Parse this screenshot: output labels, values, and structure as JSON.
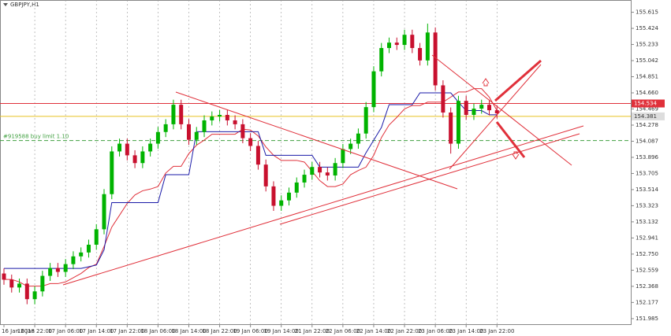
{
  "chart_data": {
    "type": "candlestick",
    "title": "GBPJPY,H1",
    "categories": [
      "16 Jan 2018",
      null,
      null,
      null,
      "16 Jan 22:00",
      null,
      null,
      null,
      "17 Jan 06:00",
      null,
      null,
      null,
      "17 Jan 14:00",
      null,
      null,
      null,
      "17 Jan 22:00",
      null,
      null,
      null,
      "18 Jan 06:00",
      null,
      null,
      null,
      "18 Jan 14:00",
      null,
      null,
      null,
      "18 Jan 22:00",
      null,
      null,
      null,
      "19 Jan 06:00",
      null,
      null,
      null,
      "19 Jan 14:00",
      null,
      null,
      null,
      "21 Jan 22:00",
      null,
      null,
      null,
      "22 Jan 06:00",
      null,
      null,
      null,
      "22 Jan 14:00",
      null,
      null,
      null,
      "22 Jan 22:00",
      null,
      null,
      null,
      "23 Jan 06:00",
      null,
      null,
      null,
      "23 Jan 14:00",
      null,
      null,
      null,
      "23 Jan 22:00"
    ],
    "open": [
      152.52,
      152.447,
      152.354,
      152.4,
      152.216,
      152.308,
      152.492,
      152.585,
      152.539,
      152.631,
      152.723,
      152.769,
      152.861,
      153.044,
      153.46,
      153.966,
      154.058,
      153.92,
      153.828,
      153.966,
      154.058,
      154.196,
      154.288,
      154.519,
      154.288,
      154.104,
      154.196,
      154.334,
      154.38,
      154.399,
      154.334,
      154.288,
      154.123,
      154.031,
      153.81,
      153.552,
      153.322,
      153.386,
      153.478,
      153.598,
      153.69,
      153.782,
      153.717,
      153.681,
      153.828,
      153.994,
      154.058,
      154.178,
      154.491,
      154.915,
      155.191,
      155.255,
      155.228,
      155.348,
      155.191,
      155.044,
      155.375,
      154.749,
      154.427,
      154.058,
      154.565,
      154.399,
      154.473,
      154.519,
      154.454
    ],
    "high": [
      152.58,
      152.507,
      152.46,
      152.46,
      152.368,
      152.552,
      152.645,
      152.645,
      152.691,
      152.783,
      152.829,
      152.921,
      153.104,
      153.52,
      154.026,
      154.118,
      154.118,
      153.98,
      154.026,
      154.118,
      154.256,
      154.348,
      154.579,
      154.579,
      154.348,
      154.256,
      154.394,
      154.44,
      154.459,
      154.459,
      154.394,
      154.348,
      154.183,
      154.091,
      153.87,
      153.612,
      153.446,
      153.538,
      153.658,
      153.75,
      153.842,
      153.842,
      153.777,
      153.888,
      154.054,
      154.118,
      154.238,
      154.551,
      154.975,
      155.251,
      155.315,
      155.315,
      155.408,
      155.408,
      155.251,
      155.48,
      155.435,
      154.809,
      154.487,
      154.625,
      154.625,
      154.533,
      154.579,
      154.579,
      154.514
    ],
    "low": [
      152.387,
      152.294,
      152.294,
      152.156,
      152.156,
      152.248,
      152.432,
      152.479,
      152.479,
      152.571,
      152.663,
      152.709,
      152.801,
      152.984,
      153.4,
      153.906,
      153.86,
      153.768,
      153.768,
      153.906,
      153.998,
      154.136,
      154.228,
      154.228,
      154.044,
      154.044,
      154.136,
      154.274,
      154.32,
      154.274,
      154.228,
      154.063,
      153.971,
      153.75,
      153.492,
      153.262,
      153.262,
      153.326,
      153.418,
      153.538,
      153.63,
      153.657,
      153.621,
      153.621,
      153.768,
      153.934,
      153.998,
      154.118,
      154.431,
      154.855,
      155.131,
      155.168,
      155.168,
      155.131,
      154.984,
      154.984,
      154.689,
      154.367,
      153.94,
      153.998,
      154.339,
      154.339,
      154.413,
      154.394,
      154.357
    ],
    "close": [
      152.447,
      152.354,
      152.4,
      152.216,
      152.308,
      152.492,
      152.585,
      152.539,
      152.631,
      152.723,
      152.769,
      152.861,
      153.044,
      153.46,
      153.966,
      154.058,
      153.92,
      153.828,
      153.966,
      154.058,
      154.196,
      154.288,
      154.519,
      154.288,
      154.104,
      154.196,
      154.334,
      154.38,
      154.399,
      154.334,
      154.288,
      154.123,
      154.031,
      153.81,
      153.552,
      153.322,
      153.386,
      153.478,
      153.598,
      153.69,
      153.782,
      153.717,
      153.681,
      153.828,
      153.994,
      154.058,
      154.178,
      154.491,
      154.915,
      155.191,
      155.255,
      155.228,
      155.348,
      155.191,
      155.044,
      155.375,
      154.749,
      154.427,
      154.058,
      154.565,
      154.399,
      154.473,
      154.519,
      154.454,
      154.417
    ],
    "up_color": "#00b300",
    "down_color": "#c8102e",
    "series": [
      {
        "color": "#e0303a",
        "values": [
          152.45,
          152.45,
          152.42,
          152.37,
          152.37,
          152.37,
          152.4,
          152.4,
          152.42,
          152.47,
          152.52,
          152.59,
          152.63,
          152.84,
          153.07,
          153.21,
          153.35,
          153.45,
          153.5,
          153.52,
          153.55,
          153.71,
          153.79,
          153.79,
          153.94,
          154.04,
          154.1,
          154.17,
          154.17,
          154.17,
          154.17,
          154.23,
          154.22,
          154.15,
          154.02,
          153.92,
          153.86,
          153.86,
          153.86,
          153.84,
          153.73,
          153.62,
          153.55,
          153.55,
          153.58,
          153.69,
          153.74,
          153.78,
          153.92,
          154.13,
          154.28,
          154.37,
          154.47,
          154.51,
          154.51,
          154.55,
          154.55,
          154.55,
          154.61,
          154.67,
          154.67,
          154.71,
          154.71,
          154.61,
          154.45
        ]
      },
      {
        "color": "#1a1aa8",
        "values": [
          152.58,
          152.58,
          152.58,
          152.58,
          152.58,
          152.58,
          152.58,
          152.58,
          152.58,
          152.58,
          152.58,
          152.6,
          152.62,
          152.8,
          153.36,
          153.36,
          153.36,
          153.36,
          153.36,
          153.36,
          153.36,
          153.69,
          153.69,
          153.69,
          153.69,
          154.2,
          154.2,
          154.2,
          154.2,
          154.2,
          154.2,
          154.2,
          154.2,
          154.2,
          153.92,
          153.92,
          153.92,
          153.92,
          153.92,
          153.92,
          153.92,
          153.78,
          153.78,
          153.78,
          153.78,
          153.78,
          153.78,
          153.95,
          154.1,
          154.25,
          154.52,
          154.52,
          154.52,
          154.52,
          154.66,
          154.66,
          154.66,
          154.66,
          154.66,
          154.55,
          154.45,
          154.45,
          154.45,
          154.4,
          154.4
        ]
      }
    ],
    "levels": [
      {
        "value": 154.534,
        "color": "#e0303a"
      },
      {
        "value": 154.381,
        "color": "#e8c020"
      }
    ],
    "order": {
      "label": "#919588 buy limit 1.10",
      "value": 154.095,
      "color": "#40a040"
    },
    "ylim": [
      151.91,
      155.76
    ],
    "yticks": [
      155.615,
      155.424,
      155.233,
      155.042,
      154.851,
      {
        "value": 154.66,
        "label": "154.660"
      },
      154.469,
      154.278,
      154.087,
      153.896,
      153.705,
      153.514,
      153.323,
      153.132,
      152.941,
      {
        "value": 152.75,
        "label": "152.750"
      },
      152.559,
      152.368,
      152.177,
      151.985
    ],
    "grid": "vertical"
  }
}
